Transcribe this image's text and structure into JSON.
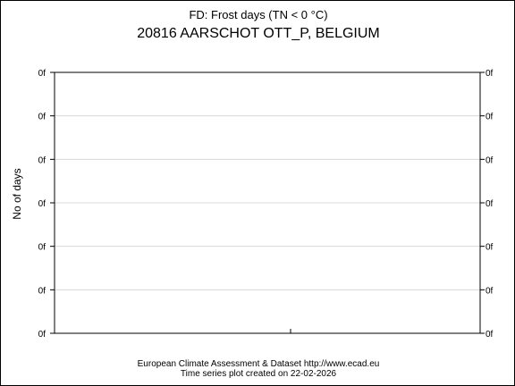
{
  "chart_data": {
    "type": "line",
    "title": "FD: Frost days (TN < 0 °C)",
    "subtitle": "20816 AARSCHOT OTT_P, BELGIUM",
    "xlabel": "",
    "ylabel": "No of days",
    "y_tick_labels": [
      "0f",
      "0f",
      "0f",
      "0f",
      "0f",
      "0f",
      "0f"
    ],
    "grid": true,
    "series": [],
    "x": []
  },
  "footer": {
    "line1": "European Climate Assessment & Dataset  http://www.ecad.eu",
    "line2": "Time series plot created on 22-02-2026"
  }
}
